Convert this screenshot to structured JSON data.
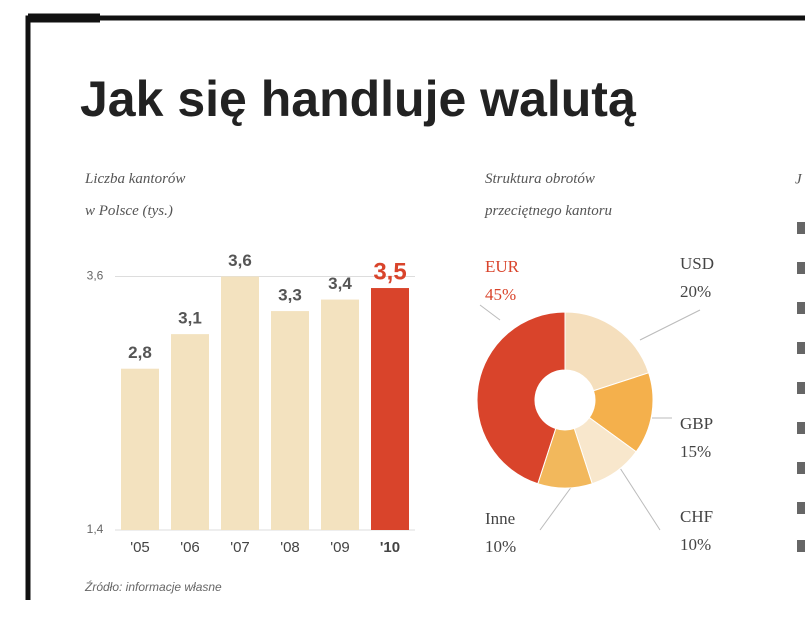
{
  "title": "Jak się handluje walutą",
  "footnote": "Źródło: informacje własne",
  "third_panel_heading": "J",
  "chart_data": [
    {
      "type": "bar",
      "title": "Liczba kantorów w Polsce (tys.)",
      "categories": [
        "'05",
        "'06",
        "'07",
        "'08",
        "'09",
        "'10"
      ],
      "values": [
        2.8,
        3.1,
        3.6,
        3.3,
        3.4,
        3.5
      ],
      "value_labels": [
        "2,8",
        "3,1",
        "3,6",
        "3,3",
        "3,4",
        "3,5"
      ],
      "colors": [
        "#f3e2bf",
        "#f3e2bf",
        "#f3e2bf",
        "#f3e2bf",
        "#f3e2bf",
        "#d9442b"
      ],
      "ylim": [
        1.4,
        3.7
      ],
      "yticks": [
        {
          "value": 1.4,
          "label": "1,4"
        },
        {
          "value": 3.6,
          "label": "3,6"
        }
      ],
      "grid": true
    },
    {
      "type": "pie",
      "title": "Struktura obrotów przeciętnego kantoru",
      "categories": [
        "USD",
        "GBP",
        "CHF",
        "Inne",
        "EUR"
      ],
      "values": [
        20,
        15,
        10,
        10,
        45
      ],
      "value_labels": [
        "20%",
        "15%",
        "10%",
        "10%",
        "45%"
      ],
      "colors": [
        "#f5dfbd",
        "#f4b04c",
        "#f8e7cc",
        "#f2b85c",
        "#d9442b"
      ]
    }
  ]
}
